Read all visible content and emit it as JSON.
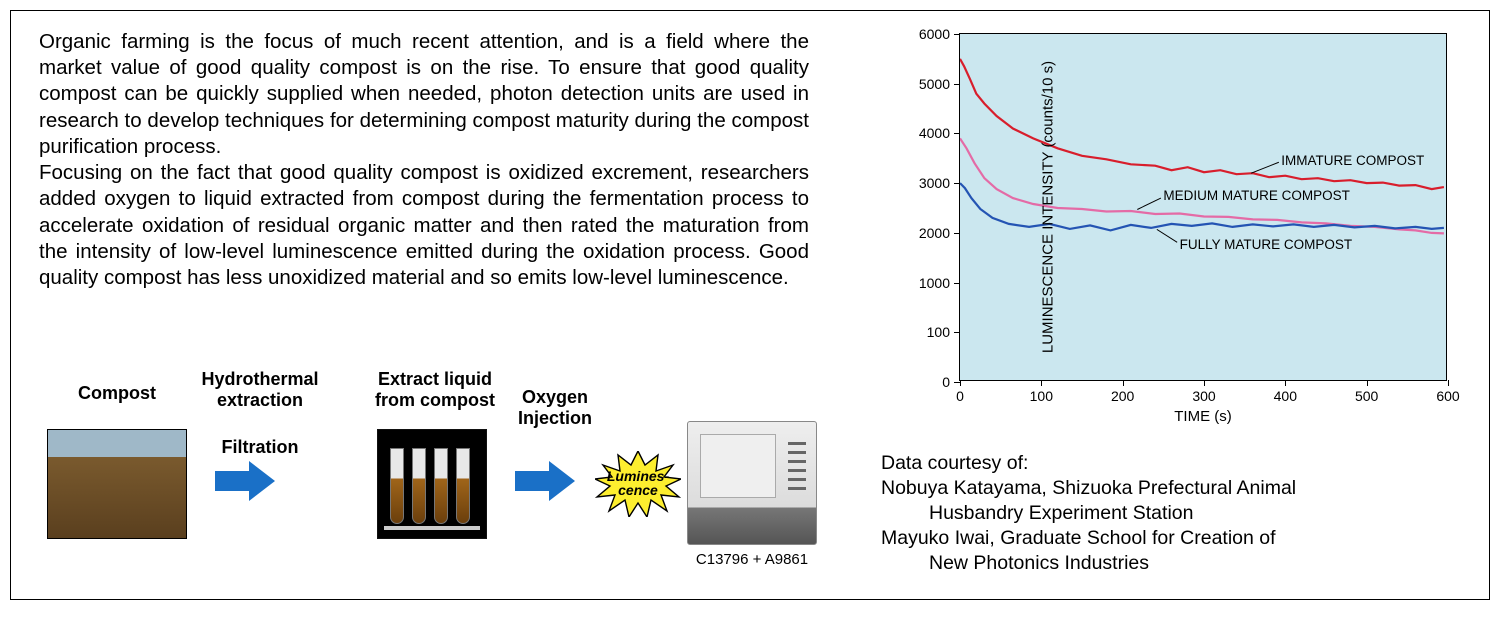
{
  "paragraphs": [
    "Organic farming is the focus of much recent attention, and is a field where the market value of good quality compost is on the rise. To ensure that good quality compost can be quickly supplied when needed, photon detection units are used in research to develop techniques for determining compost maturity during the compost purification process.",
    "Focusing on the fact that good quality compost is oxidized excrement, researchers added oxygen to liquid extracted from compost during the fermentation process to accelerate oxidation of residual organic matter and then rated the maturation from the intensity of low-level luminescence emitted during the oxidation process. Good quality compost has less unoxidized material and so emits low-level luminescence."
  ],
  "flow": {
    "step1_label": "Compost",
    "step2_top": "Hydrothermal\nextraction",
    "step2_bottom": "Filtration",
    "step3_label": "Extract liquid\nfrom compost",
    "step4_label": "Oxygen\nInjection",
    "luminescence_label": "Lumines-\ncence",
    "instrument_caption": "C13796 + A9861",
    "arrow_color": "#1a70c7",
    "starburst_fill": "#fdee2f",
    "starburst_stroke": "#000000"
  },
  "chart": {
    "type": "line",
    "background_color": "#cbe7ef",
    "ylabel": "LUMINESCENCE INTENSITY (counts/10 s)",
    "xlabel": "TIME (s)",
    "xlim": [
      0,
      600
    ],
    "ylim": [
      0,
      6000
    ],
    "xticks": [
      0,
      100,
      200,
      300,
      400,
      500,
      600
    ],
    "yticks": [
      0,
      100,
      1000,
      2000,
      3000,
      4000,
      5000,
      6000
    ],
    "label_fontsize": 15,
    "tick_fontsize": 14,
    "series": [
      {
        "name": "IMMATURE COMPOST",
        "color": "#d81e2c",
        "line_width": 2.2,
        "label_xy": [
          395,
          3450
        ],
        "leader_from": [
          392,
          3420
        ],
        "leader_to": [
          358,
          3200
        ],
        "data": [
          [
            0,
            5500
          ],
          [
            5,
            5350
          ],
          [
            12,
            5100
          ],
          [
            20,
            4800
          ],
          [
            30,
            4600
          ],
          [
            45,
            4350
          ],
          [
            65,
            4100
          ],
          [
            90,
            3900
          ],
          [
            120,
            3700
          ],
          [
            150,
            3550
          ],
          [
            180,
            3480
          ],
          [
            210,
            3380
          ],
          [
            240,
            3350
          ],
          [
            260,
            3260
          ],
          [
            280,
            3320
          ],
          [
            300,
            3220
          ],
          [
            320,
            3260
          ],
          [
            340,
            3180
          ],
          [
            360,
            3200
          ],
          [
            380,
            3120
          ],
          [
            400,
            3150
          ],
          [
            420,
            3080
          ],
          [
            440,
            3100
          ],
          [
            460,
            3040
          ],
          [
            480,
            3060
          ],
          [
            500,
            3000
          ],
          [
            520,
            3010
          ],
          [
            540,
            2950
          ],
          [
            560,
            2960
          ],
          [
            580,
            2880
          ],
          [
            595,
            2920
          ]
        ]
      },
      {
        "name": "MEDIUM MATURE COMPOST",
        "color": "#e46ba6",
        "line_width": 2.2,
        "label_xy": [
          250,
          2750
        ],
        "leader_from": [
          247,
          2700
        ],
        "leader_to": [
          218,
          2470
        ],
        "data": [
          [
            0,
            3900
          ],
          [
            8,
            3700
          ],
          [
            18,
            3400
          ],
          [
            30,
            3100
          ],
          [
            45,
            2880
          ],
          [
            65,
            2700
          ],
          [
            90,
            2580
          ],
          [
            120,
            2500
          ],
          [
            150,
            2480
          ],
          [
            180,
            2430
          ],
          [
            210,
            2440
          ],
          [
            240,
            2380
          ],
          [
            270,
            2390
          ],
          [
            300,
            2330
          ],
          [
            330,
            2320
          ],
          [
            360,
            2270
          ],
          [
            390,
            2260
          ],
          [
            420,
            2210
          ],
          [
            450,
            2190
          ],
          [
            480,
            2140
          ],
          [
            510,
            2120
          ],
          [
            540,
            2070
          ],
          [
            560,
            2050
          ],
          [
            580,
            2000
          ],
          [
            595,
            1990
          ]
        ]
      },
      {
        "name": "FULLY MATURE COMPOST",
        "color": "#2454b3",
        "line_width": 2.2,
        "label_xy": [
          270,
          1750
        ],
        "leader_from": [
          267,
          1810
        ],
        "leader_to": [
          242,
          2070
        ],
        "data": [
          [
            0,
            3000
          ],
          [
            6,
            2900
          ],
          [
            14,
            2700
          ],
          [
            25,
            2480
          ],
          [
            40,
            2300
          ],
          [
            60,
            2180
          ],
          [
            85,
            2120
          ],
          [
            110,
            2180
          ],
          [
            135,
            2080
          ],
          [
            160,
            2150
          ],
          [
            185,
            2050
          ],
          [
            210,
            2160
          ],
          [
            235,
            2100
          ],
          [
            260,
            2180
          ],
          [
            285,
            2140
          ],
          [
            310,
            2190
          ],
          [
            335,
            2120
          ],
          [
            360,
            2170
          ],
          [
            385,
            2130
          ],
          [
            410,
            2170
          ],
          [
            435,
            2120
          ],
          [
            460,
            2160
          ],
          [
            485,
            2110
          ],
          [
            510,
            2140
          ],
          [
            535,
            2090
          ],
          [
            560,
            2120
          ],
          [
            580,
            2080
          ],
          [
            595,
            2100
          ]
        ]
      }
    ]
  },
  "credits": {
    "heading": "Data courtesy of:",
    "line1a": "Nobuya Katayama, Shizuoka Prefectural Animal",
    "line1b": "Husbandry Experiment Station",
    "line2a": "Mayuko Iwai, Graduate School for Creation of",
    "line2b": "New Photonics Industries"
  }
}
